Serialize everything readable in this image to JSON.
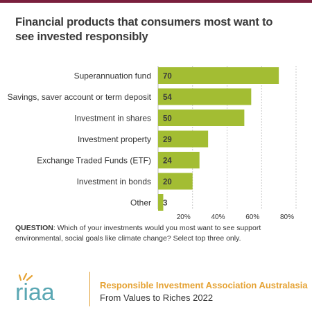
{
  "title": "Financial products that consumers most want to see invested responsibly",
  "chart_data": {
    "type": "bar",
    "orientation": "horizontal",
    "categories": [
      "Superannuation fund",
      "Savings, saver account or term deposit",
      "Investment in shares",
      "Investment property",
      "Exchange Traded Funds (ETF)",
      "Investment in bonds",
      "Other"
    ],
    "values": [
      70,
      54,
      50,
      29,
      24,
      20,
      3
    ],
    "xlim": [
      0,
      80
    ],
    "xticks": [
      20,
      40,
      60,
      80
    ],
    "xtick_labels": [
      "20%",
      "40%",
      "60%",
      "80%"
    ],
    "grid": "vertical dashed",
    "bar_color": "#a3bd33",
    "label_color": "#3a3a3a"
  },
  "question": {
    "label": "QUESTION",
    "text": ": Which of your investments would you most want to see support environmental, social goals like climate change? Select top three only."
  },
  "footer": {
    "logo_text": "riaa",
    "org_name": "Responsible Investment Association Australasia",
    "subtitle": "From Values to Riches 2022",
    "accent_color": "#e5a233",
    "logo_color": "#5aa7b3"
  }
}
